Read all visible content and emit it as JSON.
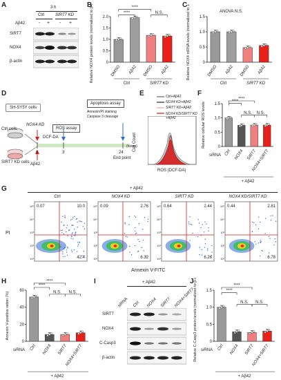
{
  "panel_letters": [
    "A",
    "B",
    "C",
    "D",
    "E",
    "F",
    "G",
    "H",
    "I",
    "J"
  ],
  "panelA": {
    "time": "3 h",
    "groups": [
      "Ctrl",
      "SIRT7 KD"
    ],
    "abeta_label": "Aβ42",
    "signs": [
      "-",
      "+",
      "-",
      "+"
    ],
    "bands": [
      "SIRT7",
      "NOX4",
      "β-actin"
    ]
  },
  "panelC": {
    "annotation": "ANOVA N.S."
  },
  "panelD": {
    "cell_line": "SH-SY5Y cells",
    "ctrl_cells": "Ctrl cells",
    "kd_cells": "SIRT7 KD cells",
    "treatment_top": "NOX4 KD",
    "treatment_bottom": "Aβ42",
    "ros_box": "ROS assay",
    "dcf": "DCF-DA",
    "apop_box": "Apoptosis assay",
    "apop_sub1": "Annexin/PI staining",
    "apop_sub2": "Caspase 3 cleavage",
    "endpoint": "End point",
    "timeline_ticks": [
      "0",
      "3",
      "24"
    ],
    "hours": "(hours)"
  },
  "panelE": {
    "legend": [
      "Ctrl+Aβ42",
      "NOX4 KD+Aβ42",
      "SIRT7 KD+Aβ42",
      "NOX4 KD/SIRT7 KD +Aβ42"
    ],
    "ylabel": "Cell Count",
    "xlabel": "ROS (DCF-DA)"
  },
  "panelG": {
    "header": "+ Aβ42",
    "titles": [
      "Ctrl",
      "NOX4 KD",
      "SIRT7 KD",
      "NOX4 KD/SIRT7 KD"
    ],
    "quadrants": [
      {
        "ul": "0.07",
        "ur": "10.0",
        "lr": "42.4"
      },
      {
        "ul": "0.09",
        "ur": "2.76",
        "lr": "6.32"
      },
      {
        "ul": "0.64",
        "ur": "2.44",
        "lr": "6.26"
      },
      {
        "ul": "0.44",
        "ur": "2.81",
        "lr": "6.78"
      }
    ],
    "ylabel": "PI",
    "xlabel": "Annexin V-FITC",
    "axis_ticks": [
      "10⁵",
      "10⁴",
      "10³",
      "10²",
      "10¹"
    ]
  },
  "panelI": {
    "header": "+ Aβ42",
    "lanes": [
      "siRNA",
      "Ctrl",
      "NOX4",
      "SIRT7",
      "NOX4+SIRT7"
    ],
    "bands": [
      "SIRT7",
      "NOX4",
      "C-Casp3",
      "β-actin"
    ]
  },
  "chart_data": [
    {
      "panel": "B",
      "type": "bar",
      "ylabel": "Relative NOX4 protein levels (normalized to β-actin)",
      "categories": [
        "DMSO",
        "Aβ42",
        "DMSO",
        "Aβ42"
      ],
      "groups": [
        "Ctrl",
        "SIRT7 KD"
      ],
      "values": [
        1.0,
        1.95,
        1.18,
        1.15
      ],
      "ylim": [
        0,
        2.0
      ],
      "yticks": [
        "0",
        "0.5",
        "1.0",
        "1.5",
        "2.0"
      ],
      "sig": [
        "****",
        "****",
        "N.S."
      ],
      "colors": [
        "#999999",
        "#9e9e9e",
        "#f08080",
        "#e8201a"
      ]
    },
    {
      "panel": "C",
      "type": "bar",
      "ylabel": "Relative NOX4 mRNA levels (normalized to 18S)",
      "categories": [
        "DMSO",
        "Aβ42",
        "DMSO",
        "Aβ42"
      ],
      "groups": [
        "Ctrl",
        "SIRT7 KD"
      ],
      "values": [
        1.0,
        1.0,
        0.48,
        0.55
      ],
      "ylim": [
        0,
        1.5
      ],
      "yticks": [
        "0",
        "0.5",
        "1.0",
        "1.5"
      ],
      "colors": [
        "#999999",
        "#9e9e9e",
        "#f08080",
        "#e8201a"
      ]
    },
    {
      "panel": "F",
      "type": "bar",
      "ylabel": "Relative cellular ROS levels",
      "categories": [
        "Ctrl",
        "NOX4",
        "SIRT7",
        "NOX4+SIRT7"
      ],
      "prefix": "siRNA",
      "footer": "+ Aβ42",
      "values": [
        1.0,
        0.74,
        0.75,
        0.75
      ],
      "ylim": [
        0,
        1.5
      ],
      "yticks": [
        "0",
        "0.5",
        "1.0",
        "1.5"
      ],
      "sig": [
        "****",
        "****",
        "N.S.",
        "N.S."
      ],
      "colors": [
        "#999999",
        "#555555",
        "#f08080",
        "#e8201a"
      ]
    },
    {
      "panel": "H",
      "type": "bar",
      "ylabel": "Annexin V-positive ration (%)",
      "categories": [
        "Ctrl",
        "NOX4",
        "SIRT7",
        "NOX4+SIRT7"
      ],
      "prefix": "siRNA",
      "footer": "+ Aβ42",
      "values": [
        52,
        8,
        8,
        10
      ],
      "ylim": [
        0,
        60
      ],
      "yticks": [
        "0",
        "20",
        "40",
        "60"
      ],
      "sig": [
        "****",
        "****",
        "N.S.",
        "N.S."
      ],
      "colors": [
        "#999999",
        "#555555",
        "#f08080",
        "#e8201a"
      ]
    },
    {
      "panel": "J",
      "type": "bar",
      "ylabel": "Relative C-Casp3 protein levels (normalized to β-actin)",
      "categories": [
        "Ctrl",
        "NOX4",
        "SIRT7",
        "NOX4+SIRT7"
      ],
      "prefix": "siRNA",
      "footer": "+ Aβ42",
      "values": [
        1.0,
        0.28,
        0.26,
        0.3
      ],
      "ylim": [
        0,
        1.5
      ],
      "yticks": [
        "0",
        "0.5",
        "1.0",
        "1.5"
      ],
      "sig": [
        "****",
        "****",
        "N.S.",
        "N.S."
      ],
      "colors": [
        "#999999",
        "#555555",
        "#f08080",
        "#e8201a"
      ]
    }
  ]
}
